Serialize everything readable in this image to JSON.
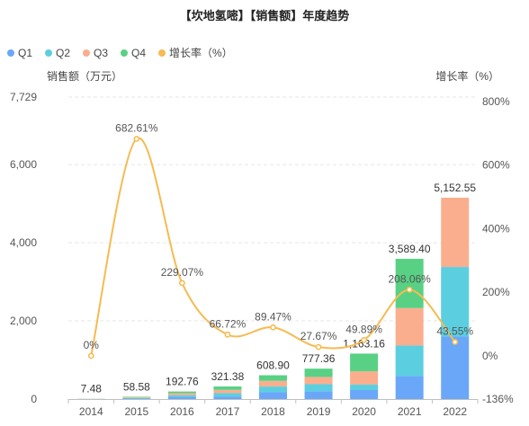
{
  "chart_data": {
    "type": "bar",
    "title": "【坎地氢嘧】【销售额】年度趋势",
    "legend": {
      "placement": "top-left",
      "items": [
        {
          "name": "Q1",
          "color": "#6AA7F8",
          "shape": "circle"
        },
        {
          "name": "Q2",
          "color": "#5BCFE0",
          "shape": "circle"
        },
        {
          "name": "Q3",
          "color": "#FAAE8E",
          "shape": "circle"
        },
        {
          "name": "Q4",
          "color": "#58D184",
          "shape": "circle"
        },
        {
          "name": "增长率（%）",
          "color": "#F6BB52",
          "shape": "circle"
        }
      ]
    },
    "y_left": {
      "label": "销售额（万元）",
      "ticks": [
        "7,729",
        "6,000",
        "4,000",
        "2,000",
        "0"
      ],
      "tick_values": [
        7729,
        6000,
        4000,
        2000,
        0
      ],
      "range": [
        0,
        7729
      ]
    },
    "y_right": {
      "label": "增长率（%）",
      "ticks": [
        "800%",
        "600%",
        "400%",
        "200%",
        "0%",
        "-136%"
      ],
      "tick_values": [
        800,
        600,
        400,
        200,
        0,
        -136
      ],
      "range": [
        -136,
        800
      ]
    },
    "grid": true,
    "categories": [
      "2014",
      "2015",
      "2016",
      "2017",
      "2018",
      "2019",
      "2020",
      "2021",
      "2022"
    ],
    "series": [
      {
        "name": "Q1",
        "color": "#6AA7F8",
        "values": [
          2,
          12,
          55,
          65,
          180,
          200,
          230,
          590,
          1600
        ]
      },
      {
        "name": "Q2",
        "color": "#5BCFE0",
        "values": [
          2,
          15,
          45,
          85,
          140,
          180,
          140,
          780,
          1780
        ]
      },
      {
        "name": "Q3",
        "color": "#FAAE8E",
        "values": [
          2,
          16,
          50,
          85,
          145,
          185,
          340,
          960,
          1772.55
        ]
      },
      {
        "name": "Q4",
        "color": "#58D184",
        "values": [
          1.48,
          15.58,
          42.76,
          86.38,
          143.9,
          212.36,
          453.16,
          1259.4,
          0
        ]
      }
    ],
    "totals": [
      7.48,
      58.58,
      192.76,
      321.38,
      608.9,
      777.36,
      1163.16,
      3589.4,
      5152.55
    ],
    "total_labels": [
      "7.48",
      "58.58",
      "192.76",
      "321.38",
      "608.90",
      "777.36",
      "1,163.16",
      "3,589.40",
      "5,152.55"
    ],
    "growth": {
      "name": "增长率（%）",
      "color": "#F6BB52",
      "values": [
        0,
        682.61,
        229.07,
        66.72,
        89.47,
        27.67,
        49.89,
        208.06,
        43.55
      ],
      "labels": [
        "0%",
        "682.61%",
        "229.07%",
        "66.72%",
        "89.47%",
        "27.67%",
        "49.89%",
        "208.06%",
        "43.55%"
      ]
    }
  }
}
